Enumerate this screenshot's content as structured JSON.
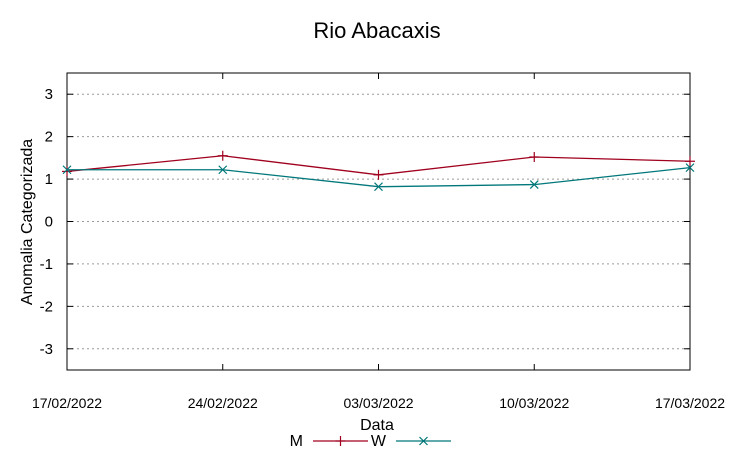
{
  "chart_data": {
    "type": "line",
    "title": "Rio Abacaxis",
    "xlabel": "Data",
    "ylabel": "Anomalia Categorizada",
    "categories": [
      "17/02/2022",
      "24/02/2022",
      "03/03/2022",
      "10/03/2022",
      "17/03/2022"
    ],
    "ylim": [
      -3.5,
      3.5
    ],
    "yticks": [
      "3",
      "2",
      "1",
      "0",
      "-1",
      "-2",
      "-3"
    ],
    "ytick_values": [
      3,
      2,
      1,
      0,
      -1,
      -2,
      -3
    ],
    "grid": true,
    "legend_position": "bottom",
    "series": [
      {
        "name": "M",
        "values": [
          1.18,
          1.55,
          1.1,
          1.52,
          1.42
        ],
        "color": "#a0001e",
        "marker": "plus"
      },
      {
        "name": "W",
        "values": [
          1.22,
          1.22,
          0.82,
          0.87,
          1.27
        ],
        "color": "#00777a",
        "marker": "cross"
      }
    ]
  }
}
